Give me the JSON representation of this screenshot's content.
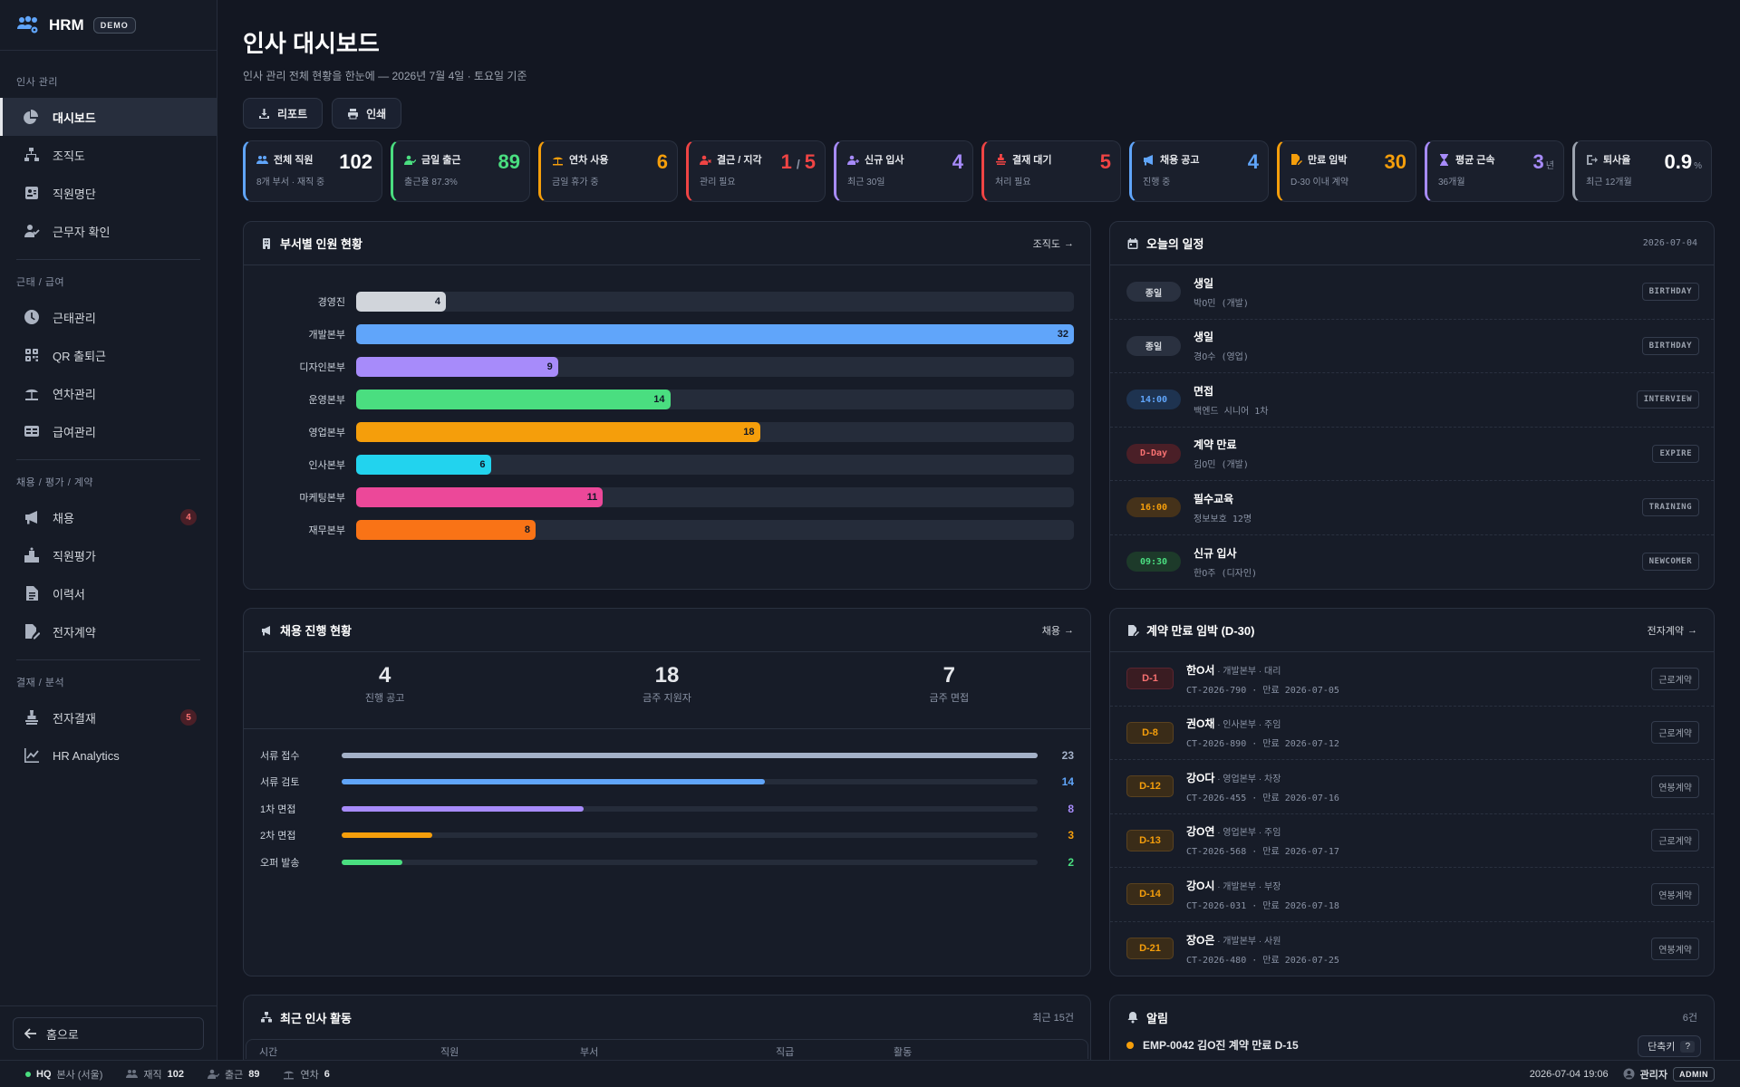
{
  "brand": {
    "name": "HRM",
    "badge": "DEMO"
  },
  "sidebar": {
    "sections": [
      {
        "title": "인사 관리",
        "items": [
          {
            "label": "대시보드",
            "icon": "pie-chart-icon",
            "active": true
          },
          {
            "label": "조직도",
            "icon": "org-chart-icon"
          },
          {
            "label": "직원명단",
            "icon": "id-card-icon"
          },
          {
            "label": "근무자 확인",
            "icon": "user-check-icon"
          }
        ]
      },
      {
        "title": "근태 / 급여",
        "items": [
          {
            "label": "근태관리",
            "icon": "clock-icon"
          },
          {
            "label": "QR 출퇴근",
            "icon": "qr-code-icon"
          },
          {
            "label": "연차관리",
            "icon": "umbrella-beach-icon"
          },
          {
            "label": "급여관리",
            "icon": "money-card-icon"
          }
        ]
      },
      {
        "title": "채용 / 평가 / 계약",
        "items": [
          {
            "label": "채용",
            "icon": "megaphone-icon",
            "badge": "4"
          },
          {
            "label": "직원평가",
            "icon": "podium-icon"
          },
          {
            "label": "이력서",
            "icon": "document-icon"
          },
          {
            "label": "전자계약",
            "icon": "file-signature-icon"
          }
        ]
      },
      {
        "title": "결재 / 분석",
        "items": [
          {
            "label": "전자결재",
            "icon": "stamp-icon",
            "badge": "5"
          },
          {
            "label": "HR Analytics",
            "icon": "line-chart-icon"
          }
        ]
      }
    ],
    "home_label": "홈으로"
  },
  "header": {
    "title": "인사 대시보드",
    "subtitle": "인사 관리 전체 현황을 한눈에 — 2026년 7월 4일 · 토요일 기준",
    "report_label": "리포트",
    "print_label": "인쇄"
  },
  "kpis": [
    {
      "label": "전체 직원",
      "sub": "8개 부서 · 재직 중",
      "value": "102",
      "color": "#60a5fa",
      "value_color": "#ffffff",
      "icon": "users-icon"
    },
    {
      "label": "금일 출근",
      "sub": "출근율 87.3%",
      "value": "89",
      "color": "#4ade80",
      "value_color": "#4ade80",
      "icon": "user-check-icon"
    },
    {
      "label": "연차 사용",
      "sub": "금일 휴가 중",
      "value": "6",
      "color": "#f59e0b",
      "value_color": "#f59e0b",
      "icon": "umbrella-beach-icon"
    },
    {
      "label": "결근 / 지각",
      "sub": "관리 필요",
      "value": "1",
      "value2": "5",
      "sep": "/",
      "color": "#ef4444",
      "value_color": "#ef4444",
      "icon": "user-x-icon"
    },
    {
      "label": "신규 입사",
      "sub": "최근 30일",
      "value": "4",
      "color": "#a78bfa",
      "value_color": "#a78bfa",
      "icon": "user-plus-icon"
    },
    {
      "label": "결재 대기",
      "sub": "처리 필요",
      "value": "5",
      "color": "#ef4444",
      "value_color": "#ef4444",
      "icon": "stamp-icon"
    },
    {
      "label": "채용 공고",
      "sub": "진행 중",
      "value": "4",
      "color": "#60a5fa",
      "value_color": "#60a5fa",
      "icon": "megaphone-icon"
    },
    {
      "label": "만료 임박",
      "sub": "D-30 이내 계약",
      "value": "30",
      "color": "#f59e0b",
      "value_color": "#f59e0b",
      "icon": "file-signature-icon"
    },
    {
      "label": "평균 근속",
      "sub": "36개월",
      "value": "3",
      "unit": "년",
      "color": "#a78bfa",
      "value_color": "#a78bfa",
      "icon": "hourglass-icon"
    },
    {
      "label": "퇴사율",
      "sub": "최근 12개월",
      "value": "0.9",
      "unit": "%",
      "color": "#9ca3af",
      "value_color": "#ffffff",
      "icon": "logout-icon"
    }
  ],
  "dept_panel": {
    "title": "부서별 인원 현황",
    "link": "조직도",
    "max": 32,
    "depts": [
      {
        "name": "경영진",
        "value": 4,
        "color": "#d1d5db"
      },
      {
        "name": "개발본부",
        "value": 32,
        "color": "#60a5fa"
      },
      {
        "name": "디자인본부",
        "value": 9,
        "color": "#a78bfa"
      },
      {
        "name": "운영본부",
        "value": 14,
        "color": "#4ade80"
      },
      {
        "name": "영업본부",
        "value": 18,
        "color": "#f59e0b"
      },
      {
        "name": "인사본부",
        "value": 6,
        "color": "#22d3ee"
      },
      {
        "name": "마케팅본부",
        "value": 11,
        "color": "#ec4899"
      },
      {
        "name": "재무본부",
        "value": 8,
        "color": "#f97316"
      }
    ]
  },
  "schedule": {
    "title": "오늘의 일정",
    "date": "2026-07-04",
    "items": [
      {
        "time": "종일",
        "title": "생일",
        "sub": "박O민 (개발)",
        "tag": "BIRTHDAY",
        "bg": "#2a3140",
        "fg": "#d1d5db"
      },
      {
        "time": "종일",
        "title": "생일",
        "sub": "경O수 (영업)",
        "tag": "BIRTHDAY",
        "bg": "#2a3140",
        "fg": "#d1d5db"
      },
      {
        "time": "14:00",
        "title": "면접",
        "sub": "백엔드 시니어 1차",
        "tag": "INTERVIEW",
        "bg": "#1e3350",
        "fg": "#60a5fa"
      },
      {
        "time": "D-Day",
        "title": "계약 만료",
        "sub": "김O민 (개발)",
        "tag": "EXPIRE",
        "bg": "#4a1f27",
        "fg": "#f87171"
      },
      {
        "time": "16:00",
        "title": "필수교육",
        "sub": "정보보호 12명",
        "tag": "TRAINING",
        "bg": "#45321a",
        "fg": "#f59e0b"
      },
      {
        "time": "09:30",
        "title": "신규 입사",
        "sub": "한O주 (디자인)",
        "tag": "NEWCOMER",
        "bg": "#1d3a2a",
        "fg": "#4ade80"
      }
    ]
  },
  "recruit": {
    "title": "채용 진행 현황",
    "link": "채용",
    "stats": [
      {
        "value": "4",
        "label": "진행 공고"
      },
      {
        "value": "18",
        "label": "금주 지원자"
      },
      {
        "value": "7",
        "label": "금주 면접"
      }
    ],
    "max": 23,
    "stages": [
      {
        "label": "서류 접수",
        "value": 23,
        "color": "#a4b1c8"
      },
      {
        "label": "서류 검토",
        "value": 14,
        "color": "#60a5fa"
      },
      {
        "label": "1차 면접",
        "value": 8,
        "color": "#a78bfa"
      },
      {
        "label": "2차 면접",
        "value": 3,
        "color": "#f59e0b"
      },
      {
        "label": "오퍼 발송",
        "value": 2,
        "color": "#4ade80"
      }
    ]
  },
  "contracts": {
    "title": "계약 만료 임박 (D-30)",
    "link": "전자계약",
    "items": [
      {
        "d": "D-1",
        "name": "한O서",
        "meta": " · 개발본부 · 대리",
        "sub": "CT-2026-790 · 만료 2026-07-05",
        "type": "근로계약",
        "fg": "#f87171",
        "bg": "#3a1c22",
        "bd": "#5b2530"
      },
      {
        "d": "D-8",
        "name": "권O채",
        "meta": " · 인사본부 · 주임",
        "sub": "CT-2026-890 · 만료 2026-07-12",
        "type": "근로계약",
        "fg": "#f59e0b",
        "bg": "#3a2c18",
        "bd": "#5a4220"
      },
      {
        "d": "D-12",
        "name": "강O다",
        "meta": " · 영업본부 · 차장",
        "sub": "CT-2026-455 · 만료 2026-07-16",
        "type": "연봉계약",
        "fg": "#f59e0b",
        "bg": "#3a2c18",
        "bd": "#5a4220"
      },
      {
        "d": "D-13",
        "name": "강O연",
        "meta": " · 영업본부 · 주임",
        "sub": "CT-2026-568 · 만료 2026-07-17",
        "type": "근로계약",
        "fg": "#f59e0b",
        "bg": "#3a2c18",
        "bd": "#5a4220"
      },
      {
        "d": "D-14",
        "name": "강O시",
        "meta": " · 개발본부 · 부장",
        "sub": "CT-2026-031 · 만료 2026-07-18",
        "type": "연봉계약",
        "fg": "#f59e0b",
        "bg": "#3a2c18",
        "bd": "#5a4220"
      },
      {
        "d": "D-21",
        "name": "장O은",
        "meta": " · 개발본부 · 사원",
        "sub": "CT-2026-480 · 만료 2026-07-25",
        "type": "연봉계약",
        "fg": "#f59e0b",
        "bg": "#3a2c18",
        "bd": "#5a4220"
      }
    ]
  },
  "activity": {
    "title": "최근 인사 활동",
    "count": "최근 15건",
    "columns": [
      "시간",
      "직원",
      "부서",
      "직급",
      "활동"
    ]
  },
  "alerts": {
    "title": "알림",
    "count": "6건",
    "first": "EMP-0042 김O진 계약 만료 D-15",
    "shortcut": "단축키",
    "shortcut_key": "?"
  },
  "statusbar": {
    "hq": "HQ",
    "hq_sub": "본사 (서울)",
    "staff_label": "재직",
    "staff": "102",
    "attend_label": "출근",
    "attend": "89",
    "leave_label": "연차",
    "leave": "6",
    "time": "2026-07-04 19:06",
    "user": "관리자",
    "role": "ADMIN"
  }
}
